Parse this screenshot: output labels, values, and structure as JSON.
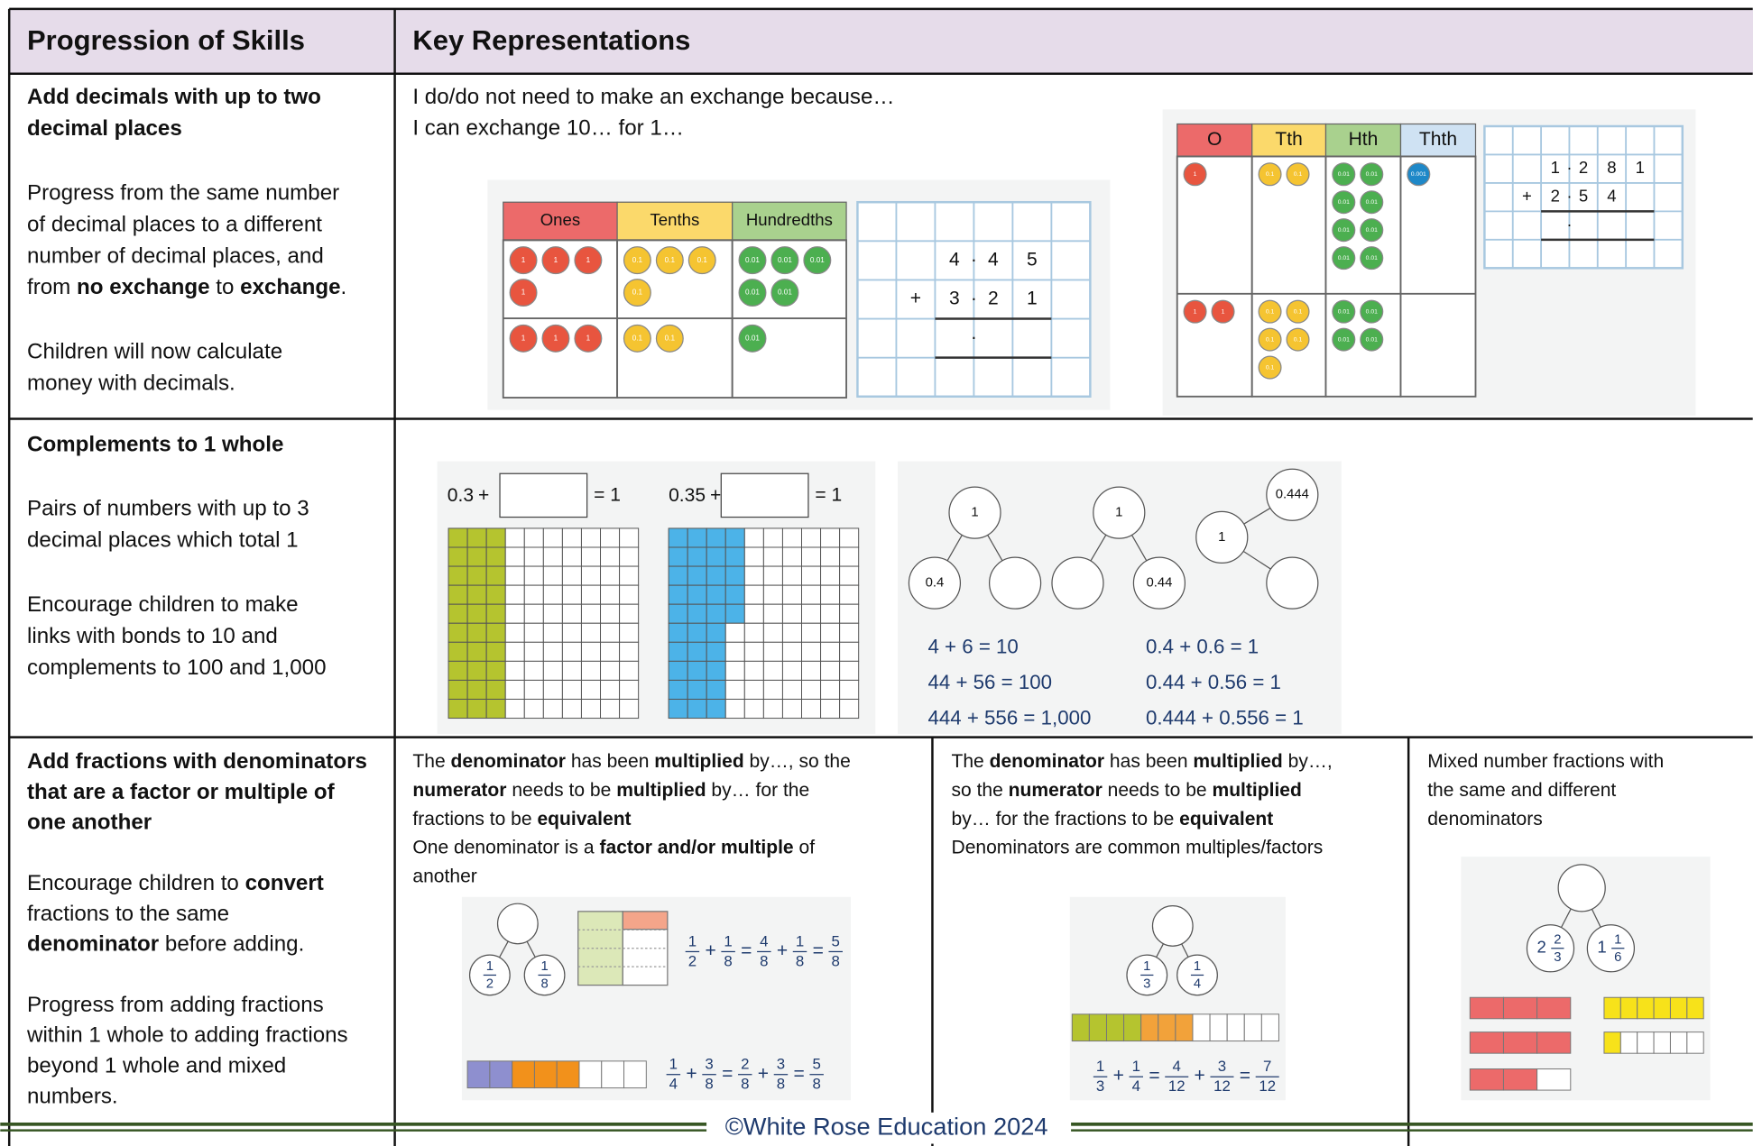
{
  "header": {
    "skills": "Progression of Skills",
    "representations": "Key Representations"
  },
  "rows": [
    {
      "skill": [
        [
          [
            {
              "text": "Add decimals with up to two",
              "bold": true
            }
          ],
          [
            {
              "text": "decimal places",
              "bold": true
            }
          ]
        ],
        [
          [
            "Progress from the same number"
          ],
          [
            "of decimal places to a different"
          ],
          [
            "number of decimal places, and"
          ],
          [
            "from ",
            {
              "text": "no exchange",
              "bold": true
            },
            " to ",
            {
              "text": "exchange",
              "bold": true
            },
            "."
          ]
        ],
        [
          [
            "Children will now calculate"
          ],
          [
            "money with decimals."
          ]
        ]
      ],
      "prompts": [
        [
          "I do/do not need to make an exchange because…"
        ],
        [
          "I can exchange 10… for 1…"
        ]
      ],
      "charts": [
        {
          "headers": [
            "Ones",
            "Tenths",
            "Hundredths"
          ],
          "rows": [
            [
              [
                "1",
                "1",
                "1",
                "1"
              ],
              [
                "0.1",
                "0.1",
                "0.1",
                "0.1"
              ],
              [
                "0.01",
                "0.01",
                "0.01",
                "0.01",
                "0.01"
              ]
            ],
            [
              [
                "1",
                "1",
                "1"
              ],
              [
                "0.1",
                "0.1"
              ],
              [
                "0.01"
              ]
            ]
          ]
        },
        {
          "headers": [
            "O",
            "Tth",
            "Hth",
            "Thth"
          ],
          "rows": [
            [
              [
                "1"
              ],
              [
                "0.1",
                "0.1"
              ],
              [
                "0.01",
                "0.01",
                "0.01",
                "0.01",
                "0.01",
                "0.01",
                "0.01",
                "0.01"
              ],
              [
                "0.001"
              ]
            ],
            [
              [
                "1",
                "1"
              ],
              [
                "0.1",
                "0.1",
                "0.1",
                "0.1",
                "0.1"
              ],
              [
                "0.01",
                "0.01",
                "0.01",
                "0.01"
              ],
              []
            ]
          ]
        }
      ],
      "grids": [
        {
          "rows": [
            [],
            [
              null,
              null,
              "4",
              "·",
              "4",
              "5"
            ],
            [
              null,
              "+",
              "3",
              "·",
              "2",
              "1"
            ],
            [
              null,
              null,
              null,
              "·"
            ],
            []
          ]
        },
        {
          "rows": [
            [],
            [
              null,
              null,
              "1",
              "·",
              "2",
              "8",
              "1"
            ],
            [
              null,
              "+",
              "2",
              "·",
              "5",
              "4"
            ],
            [
              null,
              null,
              null,
              "·"
            ],
            []
          ]
        }
      ]
    },
    {
      "skill": [
        [
          [
            {
              "text": "Complements to 1 whole",
              "bold": true
            }
          ]
        ],
        [
          [
            "Pairs of numbers with up to 3"
          ],
          [
            "decimal places which total 1"
          ]
        ],
        [
          [
            "Encourage children to make"
          ],
          [
            "links with bonds to 10 and"
          ],
          [
            "complements to 100 and 1,000"
          ]
        ]
      ],
      "hundreds": [
        {
          "part": "0.3",
          "op": "+",
          "eq": "= 1"
        },
        {
          "part": "0.35",
          "op": "+",
          "eq": "= 1"
        }
      ],
      "part_whole": [
        {
          "whole": "1",
          "parts": [
            "0.4",
            null
          ]
        },
        {
          "whole": "1",
          "parts": [
            null,
            "0.44"
          ]
        },
        {
          "whole": "1",
          "parts": [
            null,
            "0.444"
          ]
        }
      ],
      "equations": [
        [
          "4 + 6 = 10",
          "44 + 56 = 100",
          "444 + 556 = 1,000"
        ],
        [
          "0.4 + 0.6  =  1",
          "0.44 + 0.56  =  1",
          "0.444 + 0.556  =  1"
        ]
      ]
    },
    {
      "skill": [
        [
          [
            {
              "text": "Add fractions with denominators",
              "bold": true
            }
          ],
          [
            {
              "text": "that are a factor or multiple of",
              "bold": true
            }
          ],
          [
            {
              "text": "one another",
              "bold": true
            }
          ]
        ],
        [
          [
            "Encourage children to ",
            {
              "text": "convert",
              "bold": true
            }
          ],
          [
            "fractions to the same"
          ],
          [
            {
              "text": "denominator",
              "bold": true
            },
            " before adding."
          ]
        ],
        [
          [
            "Progress from adding fractions"
          ],
          [
            "within 1 whole to adding fractions"
          ],
          [
            "beyond 1 whole and mixed"
          ],
          [
            "numbers."
          ]
        ]
      ],
      "panels": [
        {
          "text": [
            [
              "The ",
              {
                "text": "denominator",
                "bold": true
              },
              " has been ",
              {
                "text": "multiplied",
                "bold": true
              },
              " by…, so the"
            ],
            [
              {
                "text": "numerator",
                "bold": true
              },
              " needs to be ",
              {
                "text": "multiplied",
                "bold": true
              },
              " by… for the"
            ],
            [
              "fractions to be ",
              {
                "text": "equivalent",
                "bold": true
              }
            ],
            [
              "One denominator is a ",
              {
                "text": "factor and/or multiple",
                "bold": true
              },
              " of"
            ],
            [
              "another"
            ]
          ],
          "parts": [
            [
              [
                "1",
                "2"
              ]
            ],
            [
              [
                "1",
                "8"
              ]
            ]
          ],
          "equations": [
            [
              [
                "1",
                "2"
              ],
              "+",
              [
                "1",
                "8"
              ],
              "=",
              [
                "4",
                "8"
              ],
              "+",
              [
                "1",
                "8"
              ],
              "=",
              [
                "5",
                "8"
              ]
            ],
            [
              [
                "1",
                "4"
              ],
              "+",
              [
                "3",
                "8"
              ],
              "=",
              [
                "2",
                "8"
              ],
              "+",
              [
                "3",
                "8"
              ],
              "=",
              [
                "5",
                "8"
              ]
            ]
          ]
        },
        {
          "text": [
            [
              "The ",
              {
                "text": "denominator",
                "bold": true
              },
              " has been ",
              {
                "text": "multiplied",
                "bold": true
              },
              " by…,"
            ],
            [
              "so the ",
              {
                "text": "numerator",
                "bold": true
              },
              " needs to be ",
              {
                "text": "multiplied",
                "bold": true
              }
            ],
            [
              "by… for the fractions to be ",
              {
                "text": "equivalent",
                "bold": true
              }
            ],
            [
              "Denominators are common multiples/factors"
            ]
          ],
          "parts": [
            [
              [
                "1",
                "3"
              ]
            ],
            [
              [
                "1",
                "4"
              ]
            ]
          ],
          "equations": [
            [
              [
                "1",
                "3"
              ],
              "+",
              [
                "1",
                "4"
              ],
              "=",
              [
                "4",
                "12"
              ],
              "+",
              [
                "3",
                "12"
              ],
              "=",
              [
                "7",
                "12"
              ]
            ]
          ]
        },
        {
          "text": [
            [
              "Mixed number fractions with"
            ],
            [
              "the same and different"
            ],
            [
              "denominators"
            ]
          ],
          "parts": [
            [
              "2",
              [
                "2",
                "3"
              ]
            ],
            [
              "1",
              [
                "1",
                "6"
              ]
            ]
          ],
          "equations": []
        }
      ]
    }
  ],
  "footer": "©White Rose Education 2024"
}
